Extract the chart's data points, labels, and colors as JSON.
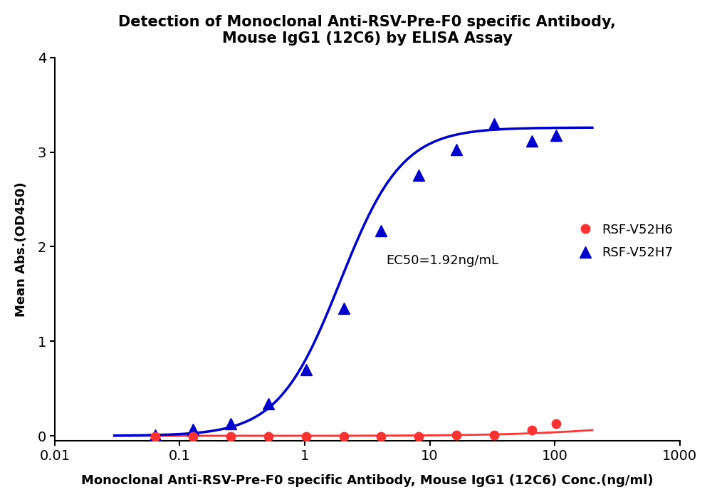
{
  "title": "Detection of Monoclonal Anti-RSV-Pre-F0 specific Antibody,\nMouse IgG1 (12C6) by ELISA Assay",
  "xlabel": "Monoclonal Anti-RSV-Pre-F0 specific Antibody, Mouse IgG1 (12C6) Conc.(ng/ml)",
  "ylabel": "Mean Abs.(OD450)",
  "ylim": [
    -0.05,
    4.0
  ],
  "yticks": [
    0,
    1,
    2,
    3,
    4
  ],
  "xticks": [
    0.01,
    0.1,
    1,
    10,
    100,
    1000
  ],
  "xtick_labels": [
    "0.01",
    "0.1",
    "1",
    "10",
    "100",
    "1000"
  ],
  "ec50_text": "EC50=1.92ng/mL",
  "ec50_x": 4.5,
  "ec50_y": 1.85,
  "series": [
    {
      "name": "RSF-V52H6",
      "color": "#FF3232",
      "marker": "o",
      "markersize": 9,
      "x": [
        0.064,
        0.128,
        0.256,
        0.512,
        1.024,
        2.048,
        4.096,
        8.192,
        16.384,
        32.768,
        65.536,
        102.4
      ],
      "y": [
        -0.01,
        -0.01,
        -0.01,
        -0.01,
        -0.01,
        -0.01,
        -0.01,
        -0.005,
        0.005,
        0.01,
        0.06,
        0.13
      ],
      "fit": false,
      "line_color": "#FF3232",
      "line_bottom": 0.0,
      "line_top": 0.15,
      "line_ec50": 300,
      "line_hill": 1.0
    },
    {
      "name": "RSF-V52H7",
      "color": "#0000CC",
      "marker": "^",
      "markersize": 11,
      "x": [
        0.064,
        0.128,
        0.256,
        0.512,
        1.024,
        2.048,
        4.096,
        8.192,
        16.384,
        32.768,
        65.536,
        102.4
      ],
      "y": [
        0.01,
        0.07,
        0.13,
        0.34,
        0.7,
        1.35,
        2.17,
        2.76,
        3.03,
        3.3,
        3.12,
        3.18
      ],
      "fit": true,
      "ec50": 1.92,
      "hill": 1.75,
      "bottom": 0.0,
      "top": 3.26
    }
  ]
}
